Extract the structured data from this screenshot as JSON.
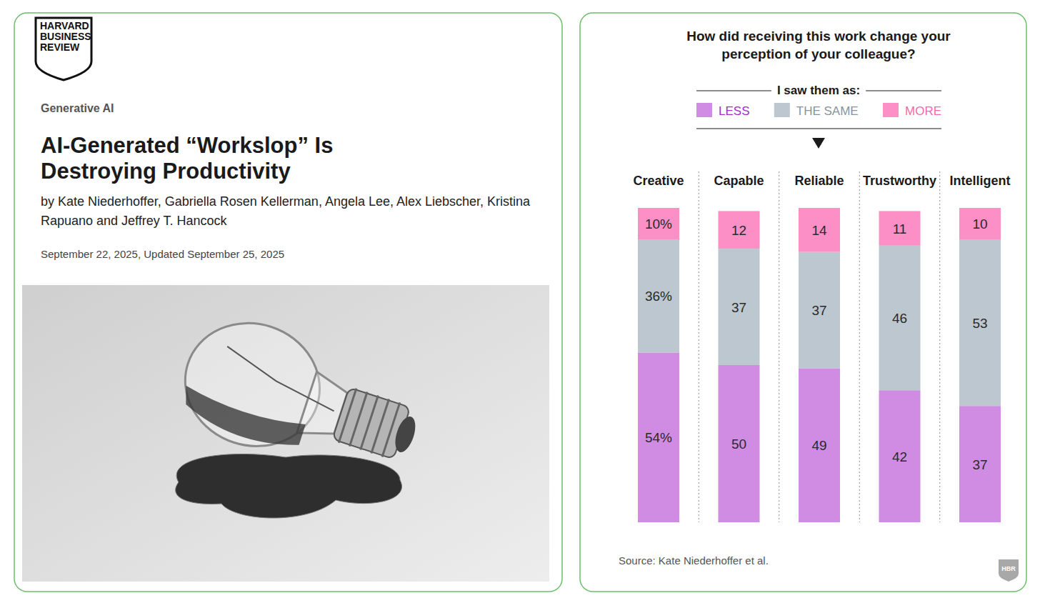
{
  "article": {
    "publication": [
      "HARVARD",
      "BUSINESS",
      "REVIEW"
    ],
    "section": "Generative AI",
    "title": "AI-Generated “Workslop” Is Destroying Productivity",
    "authors": "by Kate Niederhoffer, Gabriella Rosen Kellerman, Angela Lee, Alex Liebscher, Kristina Rapuano and Jeffrey T. Hancock",
    "date": "September 22, 2025, Updated September 25, 2025"
  },
  "chart_data": {
    "type": "bar",
    "stacked": true,
    "title": "How did receiving this work change your perception of your colleague?",
    "subtitle": "I saw them as:",
    "categories": [
      "Creative",
      "Capable",
      "Reliable",
      "Trustworthy",
      "Intelligent"
    ],
    "series": [
      {
        "name": "LESS",
        "color": "#d08ce3",
        "values": [
          54,
          50,
          49,
          42,
          37
        ],
        "value_labels": [
          "54%",
          "50",
          "49",
          "42",
          "37"
        ]
      },
      {
        "name": "THE SAME",
        "color": "#bdc7cf",
        "values": [
          36,
          37,
          37,
          46,
          53
        ],
        "value_labels": [
          "36%",
          "37",
          "37",
          "46",
          "53"
        ]
      },
      {
        "name": "MORE",
        "color": "#fb8fc6",
        "values": [
          10,
          12,
          14,
          11,
          10
        ],
        "value_labels": [
          "10%",
          "12",
          "14",
          "11",
          "10"
        ]
      }
    ],
    "ylim": [
      0,
      100
    ],
    "data_labels": true,
    "tick_labels": "x",
    "legend": "top",
    "source": "Source: Kate Niederhoffer et al.",
    "logo": "HBR"
  }
}
